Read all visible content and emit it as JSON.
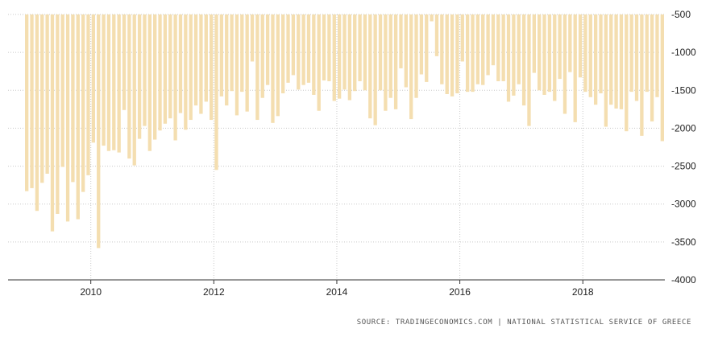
{
  "chart_data": {
    "type": "bar",
    "title": "",
    "xlabel": "",
    "ylabel": "",
    "x_start": "2008-12",
    "frequency": "monthly",
    "baseline": -500,
    "ylim": [
      -4000,
      -500
    ],
    "yticks": [
      -500,
      -1000,
      -1500,
      -2000,
      -2500,
      -3000,
      -3500,
      -4000
    ],
    "xticks": [
      "2010",
      "2012",
      "2014",
      "2016",
      "2018"
    ],
    "grid": "dotted",
    "values": [
      -2830,
      -2790,
      -3090,
      -2720,
      -2600,
      -3360,
      -3130,
      -2510,
      -3230,
      -2710,
      -3200,
      -2840,
      -2620,
      -2190,
      -3580,
      -2230,
      -2300,
      -2290,
      -2320,
      -1760,
      -2400,
      -2490,
      -2140,
      -1970,
      -2300,
      -2150,
      -2030,
      -1940,
      -1870,
      -2160,
      -1800,
      -2020,
      -1890,
      -1700,
      -1810,
      -1650,
      -1890,
      -2550,
      -1580,
      -1700,
      -1510,
      -1830,
      -1520,
      -1780,
      -1120,
      -1890,
      -1600,
      -1430,
      -1930,
      -1840,
      -1540,
      -1400,
      -1300,
      -1490,
      -1430,
      -1400,
      -1560,
      -1770,
      -1370,
      -1380,
      -1640,
      -1610,
      -1490,
      -1630,
      -1510,
      -1380,
      -1500,
      -1870,
      -1960,
      -1500,
      -1770,
      -1600,
      -1750,
      -1210,
      -1460,
      -1880,
      -1600,
      -1290,
      -1390,
      -590,
      -1050,
      -1420,
      -1550,
      -1580,
      -1540,
      -1120,
      -1520,
      -1520,
      -1420,
      -1430,
      -1300,
      -1170,
      -1380,
      -1380,
      -1650,
      -1570,
      -1420,
      -1700,
      -1970,
      -1270,
      -1500,
      -1560,
      -1520,
      -1640,
      -1350,
      -1810,
      -1260,
      -1920,
      -1330,
      -1520,
      -1590,
      -1690,
      -1540,
      -1980,
      -1690,
      -1740,
      -1750,
      -2040,
      -1520,
      -1640,
      -2100,
      -1520,
      -1910,
      -1590,
      -2170
    ]
  },
  "colors": {
    "bar": "#f4deb0",
    "grid": "#c8c8c8",
    "text": "#222222"
  },
  "source": "SOURCE: TRADINGECONOMICS.COM | NATIONAL STATISTICAL SERVICE OF GREECE"
}
